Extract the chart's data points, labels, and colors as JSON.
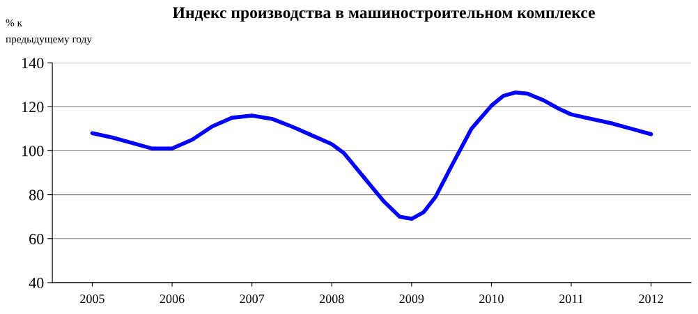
{
  "chart_data": {
    "type": "line",
    "title": "Индекс производства в машиностроительном комплексе",
    "ylabel": "% к\nпредыдущему году",
    "x": [
      2005,
      2005.25,
      2005.5,
      2005.75,
      2006,
      2006.25,
      2006.5,
      2006.75,
      2007,
      2007.25,
      2007.5,
      2007.75,
      2008,
      2008.15,
      2008.4,
      2008.65,
      2008.85,
      2009,
      2009.15,
      2009.3,
      2009.5,
      2009.75,
      2010,
      2010.15,
      2010.3,
      2010.45,
      2010.65,
      2010.85,
      2011,
      2011.25,
      2011.5,
      2011.75,
      2012
    ],
    "series": [
      {
        "color": "#0000ff",
        "values": [
          108,
          106,
          103.5,
          101,
          101,
          105,
          111,
          115,
          116,
          114.5,
          111,
          107,
          103,
          99,
          88,
          77,
          70,
          69,
          72,
          79,
          93,
          110,
          120.5,
          125,
          126.5,
          126,
          123,
          119,
          116.5,
          114.5,
          112.5,
          110,
          107.5
        ]
      }
    ],
    "xlim": [
      2004.5,
      2012.5
    ],
    "xticks": [
      2005,
      2006,
      2007,
      2008,
      2009,
      2010,
      2011,
      2012
    ],
    "ylim": [
      40,
      140
    ],
    "yticks": [
      40,
      60,
      80,
      100,
      120,
      140
    ],
    "grid": "y",
    "marker": "none",
    "line_style": "solid"
  }
}
